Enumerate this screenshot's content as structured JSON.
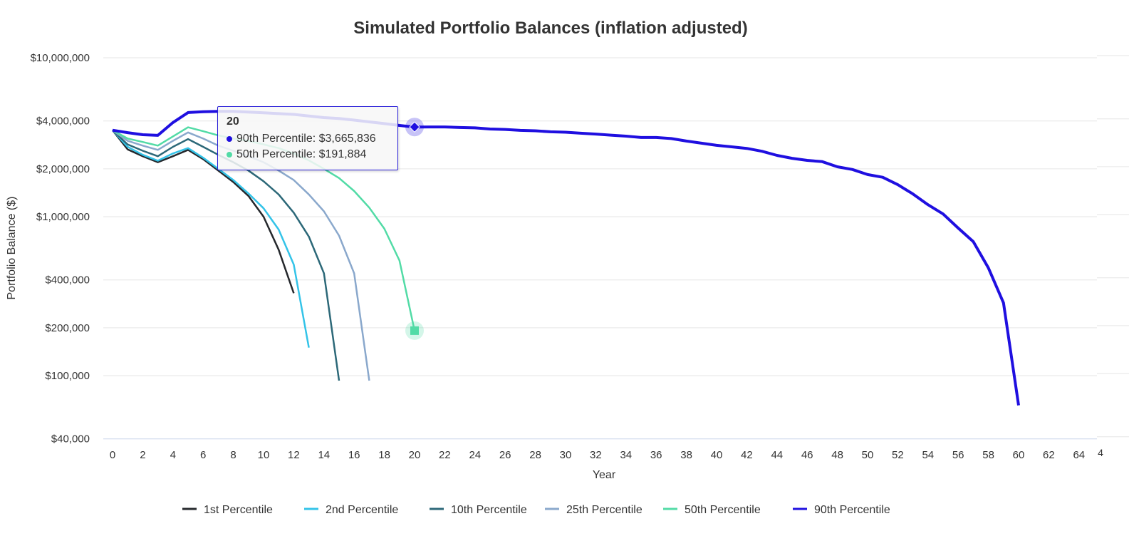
{
  "chart_data": {
    "type": "line",
    "title": "Simulated Portfolio Balances (inflation adjusted)",
    "xlabel": "Year",
    "ylabel": "Portfolio Balance ($)",
    "yscale": "log",
    "ylim": [
      40000,
      10000000
    ],
    "xlim": [
      0,
      64
    ],
    "x_ticks": [
      "0",
      "2",
      "4",
      "6",
      "8",
      "10",
      "12",
      "14",
      "16",
      "18",
      "20",
      "22",
      "24",
      "26",
      "28",
      "30",
      "32",
      "34",
      "36",
      "38",
      "40",
      "42",
      "44",
      "46",
      "48",
      "50",
      "52",
      "54",
      "56",
      "58",
      "60",
      "62",
      "64"
    ],
    "x_tick_fragment": "4",
    "y_ticks": [
      {
        "value": 10000000,
        "label": "$10,000,000"
      },
      {
        "value": 4000000,
        "label": "$4,000,000"
      },
      {
        "value": 2000000,
        "label": "$2,000,000"
      },
      {
        "value": 1000000,
        "label": "$1,000,000"
      },
      {
        "value": 400000,
        "label": "$400,000"
      },
      {
        "value": 200000,
        "label": "$200,000"
      },
      {
        "value": 100000,
        "label": "$100,000"
      },
      {
        "value": 40000,
        "label": "$40,000"
      }
    ],
    "grid": true,
    "legend_position": "bottom",
    "series": [
      {
        "name": "1st Percentile",
        "color": "#25282c",
        "width": 2.5,
        "values": [
          3500000,
          2650000,
          2400000,
          2200000,
          2400000,
          2630000,
          2300000,
          1950000,
          1650000,
          1350000,
          1000000,
          620000,
          330000
        ]
      },
      {
        "name": "2nd Percentile",
        "color": "#33c3e8",
        "width": 2.5,
        "values": [
          3500000,
          2750000,
          2450000,
          2250000,
          2500000,
          2700000,
          2350000,
          2000000,
          1700000,
          1400000,
          1130000,
          830000,
          500000,
          150000
        ]
      },
      {
        "name": "10th Percentile",
        "color": "#2c6878",
        "width": 2.5,
        "values": [
          3500000,
          2850000,
          2600000,
          2400000,
          2750000,
          3080000,
          2750000,
          2450000,
          2200000,
          1950000,
          1670000,
          1380000,
          1060000,
          750000,
          440000,
          93000
        ]
      },
      {
        "name": "25th Percentile",
        "color": "#8aa8cc",
        "width": 2.5,
        "values": [
          3500000,
          3000000,
          2800000,
          2630000,
          3000000,
          3390000,
          3100000,
          2800000,
          2600000,
          2400000,
          2200000,
          1950000,
          1700000,
          1380000,
          1080000,
          760000,
          440000,
          93000
        ]
      },
      {
        "name": "50th Percentile",
        "color": "#52dba6",
        "width": 2.5,
        "values": [
          3500000,
          3100000,
          2950000,
          2800000,
          3200000,
          3650000,
          3450000,
          3250000,
          3100000,
          3000000,
          2850000,
          2700000,
          2500000,
          2260000,
          2000000,
          1750000,
          1450000,
          1140000,
          840000,
          530000,
          191884
        ]
      },
      {
        "name": "90th Percentile",
        "color": "#1f0fe0",
        "width": 4,
        "values": [
          3500000,
          3380000,
          3280000,
          3250000,
          3910000,
          4520000,
          4570000,
          4600000,
          4600000,
          4550000,
          4500000,
          4450000,
          4400000,
          4300000,
          4200000,
          4150000,
          4050000,
          3950000,
          3850000,
          3750000,
          3665836,
          3670000,
          3670000,
          3640000,
          3620000,
          3560000,
          3540000,
          3490000,
          3470000,
          3420000,
          3400000,
          3350000,
          3310000,
          3260000,
          3210000,
          3150000,
          3150000,
          3100000,
          2990000,
          2900000,
          2810000,
          2750000,
          2690000,
          2580000,
          2430000,
          2330000,
          2260000,
          2220000,
          2060000,
          1980000,
          1840000,
          1770000,
          1590000,
          1390000,
          1190000,
          1040000,
          848000,
          697000,
          476000,
          287000,
          65000
        ]
      }
    ],
    "tooltip": {
      "title": "20",
      "rows": [
        {
          "label": "90th Percentile: $3,665,836",
          "color": "#1f0fe0"
        },
        {
          "label": "50th Percentile: $191,884",
          "color": "#52dba6"
        }
      ]
    }
  }
}
